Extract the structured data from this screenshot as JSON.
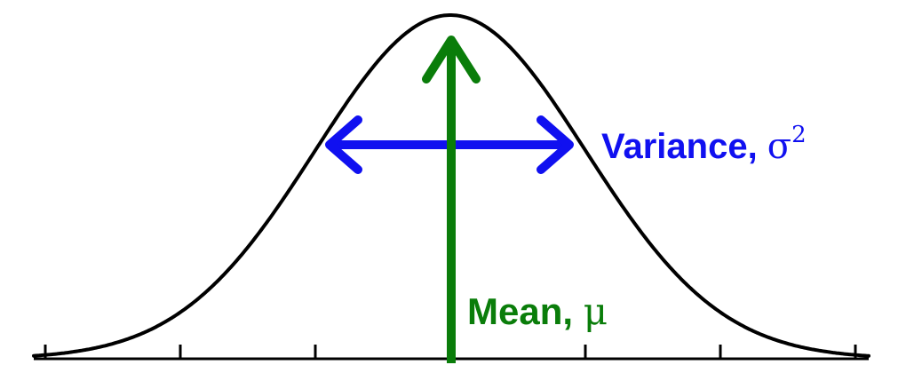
{
  "diagram": {
    "title": "",
    "variance": {
      "label": "Variance, ",
      "symbol": "σ",
      "superscript": "2",
      "color": "#1010f0"
    },
    "mean": {
      "label": "Mean, ",
      "symbol": "μ",
      "color": "#0a7d0a"
    },
    "curve": {
      "color": "#000000",
      "type": "normal-distribution"
    },
    "axis": {
      "color": "#000000",
      "tick_count": 7
    }
  }
}
